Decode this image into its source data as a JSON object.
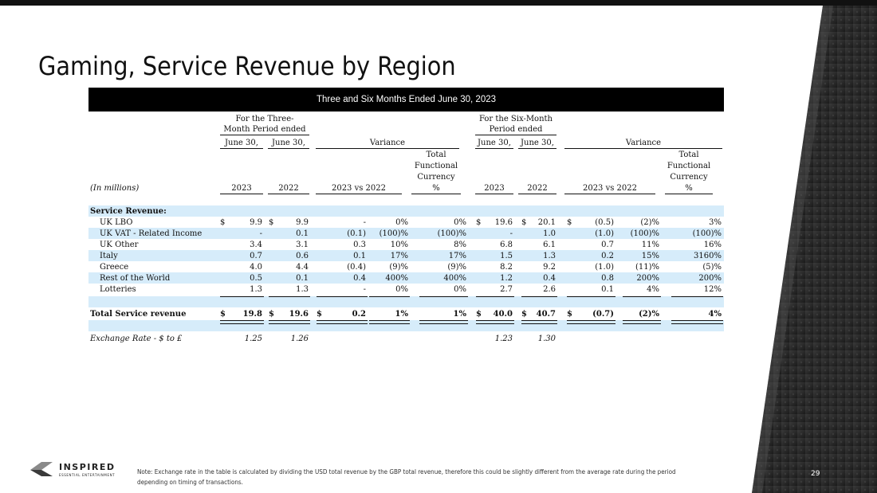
{
  "slide": {
    "title": "Gaming, Service Revenue by Region",
    "banner": "Three and Six Months Ended June 30, 2023",
    "page_number": "29",
    "footnote": "Note: Exchange rate in the table is calculated by dividing the USD total revenue by the GBP total revenue, therefore this could be slightly different from the average rate during the period depending on timing of transactions.",
    "logo_name": "INSPIRED",
    "logo_sub": "ESSENTIAL ENTERTAINMENT"
  },
  "headers": {
    "three_month_l1": "For the Three-",
    "three_month_l2": "Month Period ended",
    "six_month_l1": "For the Six-Month",
    "six_month_l2": "Period ended",
    "june30_a": "June 30,",
    "june30_b": "June 30,",
    "june30_c": "June 30,",
    "june30_d": "June 30,",
    "variance_a": "Variance",
    "variance_b": "Variance",
    "tfc_a_l1": "Total",
    "tfc_a_l2": "Functional",
    "tfc_a_l3": "Currency",
    "tfc_a_l4": "%",
    "tfc_b_l1": "Total",
    "tfc_b_l2": "Functional",
    "tfc_b_l3": "Currency",
    "tfc_b_l4": "%",
    "in_millions": "(In millions)",
    "y2023_a": "2023",
    "y2022_a": "2022",
    "vs_a": "2023 vs 2022",
    "y2023_b": "2023",
    "y2022_b": "2022",
    "vs_b": "2023 vs 2022"
  },
  "section_label": "Service Revenue:",
  "rows": [
    {
      "label": "UK LBO",
      "d1": "$",
      "c1": "9.9",
      "d2": "$",
      "c2": "9.9",
      "c3": "-",
      "c4": "0%",
      "c5": "0%",
      "d6": "$",
      "c6": "19.6",
      "d7": "$",
      "c7": "20.1",
      "d8": "$",
      "c8": "(0.5)",
      "c9": "(2)%",
      "c10": "3%"
    },
    {
      "label": "UK VAT - Related Income",
      "d1": "",
      "c1": "-",
      "d2": "",
      "c2": "0.1",
      "c3": "(0.1)",
      "c4": "(100)%",
      "c5": "(100)%",
      "d6": "",
      "c6": "-",
      "d7": "",
      "c7": "1.0",
      "d8": "",
      "c8": "(1.0)",
      "c9": "(100)%",
      "c10": "(100)%"
    },
    {
      "label": "UK Other",
      "d1": "",
      "c1": "3.4",
      "d2": "",
      "c2": "3.1",
      "c3": "0.3",
      "c4": "10%",
      "c5": "8%",
      "d6": "",
      "c6": "6.8",
      "d7": "",
      "c7": "6.1",
      "d8": "",
      "c8": "0.7",
      "c9": "11%",
      "c10": "16%"
    },
    {
      "label": "Italy",
      "d1": "",
      "c1": "0.7",
      "d2": "",
      "c2": "0.6",
      "c3": "0.1",
      "c4": "17%",
      "c5": "17%",
      "d6": "",
      "c6": "1.5",
      "d7": "",
      "c7": "1.3",
      "d8": "",
      "c8": "0.2",
      "c9": "15%",
      "c10": "3160%"
    },
    {
      "label": "Greece",
      "d1": "",
      "c1": "4.0",
      "d2": "",
      "c2": "4.4",
      "c3": "(0.4)",
      "c4": "(9)%",
      "c5": "(9)%",
      "d6": "",
      "c6": "8.2",
      "d7": "",
      "c7": "9.2",
      "d8": "",
      "c8": "(1.0)",
      "c9": "(11)%",
      "c10": "(5)%"
    },
    {
      "label": "Rest of the World",
      "d1": "",
      "c1": "0.5",
      "d2": "",
      "c2": "0.1",
      "c3": "0.4",
      "c4": "400%",
      "c5": "400%",
      "d6": "",
      "c6": "1.2",
      "d7": "",
      "c7": "0.4",
      "d8": "",
      "c8": "0.8",
      "c9": "200%",
      "c10": "200%"
    },
    {
      "label": "Lotteries",
      "d1": "",
      "c1": "1.3",
      "d2": "",
      "c2": "1.3",
      "c3": "-",
      "c4": "0%",
      "c5": "0%",
      "d6": "",
      "c6": "2.7",
      "d7": "",
      "c7": "2.6",
      "d8": "",
      "c8": "0.1",
      "c9": "4%",
      "c10": "12%"
    }
  ],
  "total": {
    "label": "Total Service revenue",
    "d1": "$",
    "c1": "19.8",
    "d2": "$",
    "c2": "19.6",
    "d3": "$",
    "c3": "0.2",
    "c4": "1%",
    "c5": "1%",
    "d6": "$",
    "c6": "40.0",
    "d7": "$",
    "c7": "40.7",
    "d8": "$",
    "c8": "(0.7)",
    "c9": "(2)%",
    "c10": "4%"
  },
  "exchange": {
    "label": "Exchange Rate - $ to £",
    "c1": "1.25",
    "c2": "1.26",
    "c6": "1.23",
    "c7": "1.30"
  }
}
